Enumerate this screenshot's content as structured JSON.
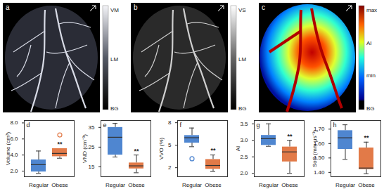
{
  "images": [
    {
      "label": "a",
      "colorbar": [
        "VM",
        "LM",
        "BG"
      ]
    },
    {
      "label": "b",
      "colorbar": [
        "VS",
        "LM",
        "BG"
      ]
    },
    {
      "label": "c",
      "colorbar": [
        "max",
        "AI",
        "min",
        "BG"
      ]
    }
  ],
  "chart_data": [
    {
      "type": "box",
      "label": "d",
      "y_label": "Volume (cm³)",
      "categories": [
        "Regular",
        "Obese"
      ],
      "colors": [
        "#4f86d0",
        "#e27a48"
      ],
      "boxes": [
        {
          "whisker_low": 1.7,
          "q1": 1.9,
          "median": 2.8,
          "q3": 3.4,
          "whisker_high": 4.5,
          "outliers": []
        },
        {
          "whisker_low": 3.6,
          "q1": 3.8,
          "median": 4.2,
          "q3": 4.8,
          "whisker_high": 4.8,
          "outliers": [
            6.5
          ]
        }
      ],
      "annotations": [
        {
          "category": "Obese",
          "text": "**"
        }
      ],
      "ylim": [
        1.3,
        8.3
      ],
      "yticks": [
        2,
        4,
        6,
        8
      ]
    },
    {
      "type": "box",
      "label": "e",
      "y_label": "VND (cm⁻³)",
      "categories": [
        "Regular",
        "Obese"
      ],
      "colors": [
        "#4f86d0",
        "#e27a48"
      ],
      "boxes": [
        {
          "whisker_low": 20,
          "q1": 21,
          "median": 30,
          "q3": 35,
          "whisker_high": 37,
          "outliers": []
        },
        {
          "whisker_low": 12,
          "q1": 14,
          "median": 15.5,
          "q3": 17,
          "whisker_high": 21,
          "outliers": []
        }
      ],
      "annotations": [
        {
          "category": "Obese",
          "text": "**"
        }
      ],
      "ylim": [
        10,
        38.5
      ],
      "yticks": [
        15,
        25,
        35
      ]
    },
    {
      "type": "box",
      "label": "f",
      "y_label": "VVO (%)",
      "categories": [
        "Regular",
        "Obese"
      ],
      "colors": [
        "#4f86d0",
        "#e27a48"
      ],
      "boxes": [
        {
          "whisker_low": 4.8,
          "q1": 5.3,
          "median": 6.0,
          "q3": 6.3,
          "whisker_high": 7.3,
          "outliers": [
            3.2
          ]
        },
        {
          "whisker_low": 1.5,
          "q1": 1.8,
          "median": 2.3,
          "q3": 3.1,
          "whisker_high": 3.7,
          "outliers": []
        }
      ],
      "annotations": [
        {
          "category": "Obese",
          "text": "**"
        }
      ],
      "ylim": [
        0.8,
        8.3
      ],
      "yticks": [
        2,
        5,
        8
      ]
    },
    {
      "type": "box",
      "label": "g",
      "y_label": "AI",
      "categories": [
        "Regular",
        "Obese"
      ],
      "colors": [
        "#4f86d0",
        "#e27a48"
      ],
      "boxes": [
        {
          "whisker_low": 2.82,
          "q1": 2.85,
          "median": 3.05,
          "q3": 3.15,
          "whisker_high": 3.5,
          "outliers": []
        },
        {
          "whisker_low": 2.0,
          "q1": 2.35,
          "median": 2.65,
          "q3": 2.8,
          "whisker_high": 3.0,
          "outliers": []
        }
      ],
      "annotations": [
        {
          "category": "Obese",
          "text": "**"
        }
      ],
      "ylim": [
        1.9,
        3.6
      ],
      "yticks": [
        2,
        2.5,
        3,
        3.5
      ]
    },
    {
      "type": "box",
      "label": "h",
      "y_label": "SoS (mm·μs⁻¹)",
      "categories": [
        "Regular",
        "Obese"
      ],
      "colors": [
        "#4f86d0",
        "#e27a48"
      ],
      "boxes": [
        {
          "whisker_low": 1.49,
          "q1": 1.56,
          "median": 1.64,
          "q3": 1.69,
          "whisker_high": 1.73,
          "outliers": []
        },
        {
          "whisker_low": 1.39,
          "q1": 1.42,
          "median": 1.43,
          "q3": 1.57,
          "whisker_high": 1.61,
          "outliers": []
        }
      ],
      "annotations": [
        {
          "category": "Obese",
          "text": "**"
        }
      ],
      "ylim": [
        1.37,
        1.76
      ],
      "yticks": [
        1.4,
        1.5,
        1.6,
        1.7
      ]
    }
  ]
}
